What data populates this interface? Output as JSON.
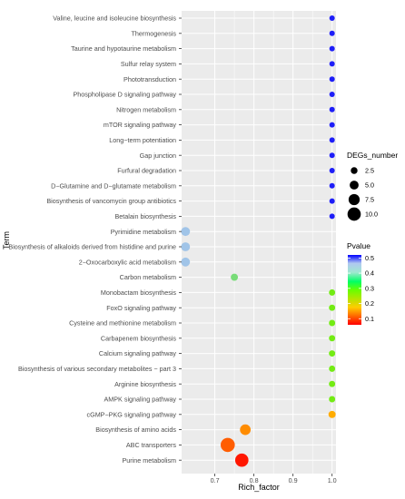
{
  "chart_data": {
    "type": "scatter",
    "xlabel": "Rich_factor",
    "ylabel": "Term",
    "xlim": [
      0.615,
      1.01
    ],
    "x_ticks": [
      "0.7",
      "0.8",
      "0.9",
      "1.0"
    ],
    "x_tick_values": [
      0.7,
      0.8,
      0.9,
      1.0
    ],
    "grid": true,
    "points": [
      {
        "term": "Valine, leucine and isoleucine biosynthesis",
        "rich_factor": 1.0,
        "pvalue": 0.5,
        "degs": 1
      },
      {
        "term": "Thermogenesis",
        "rich_factor": 1.0,
        "pvalue": 0.5,
        "degs": 1
      },
      {
        "term": "Taurine and hypotaurine metabolism",
        "rich_factor": 1.0,
        "pvalue": 0.5,
        "degs": 1
      },
      {
        "term": "Sulfur relay system",
        "rich_factor": 1.0,
        "pvalue": 0.5,
        "degs": 1
      },
      {
        "term": "Phototransduction",
        "rich_factor": 1.0,
        "pvalue": 0.5,
        "degs": 1
      },
      {
        "term": "Phospholipase D signaling pathway",
        "rich_factor": 1.0,
        "pvalue": 0.5,
        "degs": 1
      },
      {
        "term": "Nitrogen metabolism",
        "rich_factor": 1.0,
        "pvalue": 0.5,
        "degs": 1
      },
      {
        "term": "mTOR signaling pathway",
        "rich_factor": 1.0,
        "pvalue": 0.5,
        "degs": 1
      },
      {
        "term": "Long−term potentiation",
        "rich_factor": 1.0,
        "pvalue": 0.5,
        "degs": 1
      },
      {
        "term": "Gap junction",
        "rich_factor": 1.0,
        "pvalue": 0.5,
        "degs": 1
      },
      {
        "term": "Furfural degradation",
        "rich_factor": 1.0,
        "pvalue": 0.5,
        "degs": 1
      },
      {
        "term": "D−Glutamine and D−glutamate metabolism",
        "rich_factor": 1.0,
        "pvalue": 0.5,
        "degs": 1
      },
      {
        "term": "Biosynthesis of vancomycin group antibiotics",
        "rich_factor": 1.0,
        "pvalue": 0.5,
        "degs": 1
      },
      {
        "term": "Betalain biosynthesis",
        "rich_factor": 1.0,
        "pvalue": 0.5,
        "degs": 1
      },
      {
        "term": "Pyrimidine metabolism",
        "rich_factor": 0.625,
        "pvalue": 0.43,
        "degs": 5
      },
      {
        "term": "Biosynthesis of alkaloids derived from histidine and purine",
        "rich_factor": 0.625,
        "pvalue": 0.43,
        "degs": 5
      },
      {
        "term": "2−Oxocarboxylic acid metabolism",
        "rich_factor": 0.625,
        "pvalue": 0.43,
        "degs": 5
      },
      {
        "term": "Carbon metabolism",
        "rich_factor": 0.75,
        "pvalue": 0.37,
        "degs": 3
      },
      {
        "term": "Monobactam biosynthesis",
        "rich_factor": 1.0,
        "pvalue": 0.28,
        "degs": 2
      },
      {
        "term": "FoxO signaling pathway",
        "rich_factor": 1.0,
        "pvalue": 0.28,
        "degs": 2
      },
      {
        "term": "Cysteine and methionine metabolism",
        "rich_factor": 1.0,
        "pvalue": 0.28,
        "degs": 2
      },
      {
        "term": "Carbapenem biosynthesis",
        "rich_factor": 1.0,
        "pvalue": 0.28,
        "degs": 2
      },
      {
        "term": "Calcium signaling pathway",
        "rich_factor": 1.0,
        "pvalue": 0.28,
        "degs": 2
      },
      {
        "term": "Biosynthesis of various secondary metabolites − part 3",
        "rich_factor": 1.0,
        "pvalue": 0.28,
        "degs": 2
      },
      {
        "term": "Arginine biosynthesis",
        "rich_factor": 1.0,
        "pvalue": 0.28,
        "degs": 2
      },
      {
        "term": "AMPK signaling pathway",
        "rich_factor": 1.0,
        "pvalue": 0.28,
        "degs": 2
      },
      {
        "term": "cGMP−PKG signaling pathway",
        "rich_factor": 1.0,
        "pvalue": 0.14,
        "degs": 3
      },
      {
        "term": "Biosynthesis of amino acids",
        "rich_factor": 0.778,
        "pvalue": 0.12,
        "degs": 7
      },
      {
        "term": "ABC transporters",
        "rich_factor": 0.733,
        "pvalue": 0.1,
        "degs": 11
      },
      {
        "term": "Purine metabolism",
        "rich_factor": 0.769,
        "pvalue": 0.07,
        "degs": 10
      }
    ],
    "size_legend": {
      "title": "DEGs_number",
      "values": [
        2.5,
        5.0,
        7.5,
        10.0
      ],
      "labels": [
        "2.5",
        "5.0",
        "7.5",
        "10.0"
      ]
    },
    "color_legend": {
      "title": "Pvalue",
      "ticks": [
        0.1,
        0.2,
        0.3,
        0.4,
        0.5
      ],
      "labels": [
        "0.1",
        "0.2",
        "0.3",
        "0.4",
        "0.5"
      ],
      "range": [
        0.06,
        0.52
      ],
      "low_color": "#ff0000",
      "high_color": "#0000ff",
      "panel_background": "#ebebeb",
      "grid_color": "#ffffff"
    }
  }
}
